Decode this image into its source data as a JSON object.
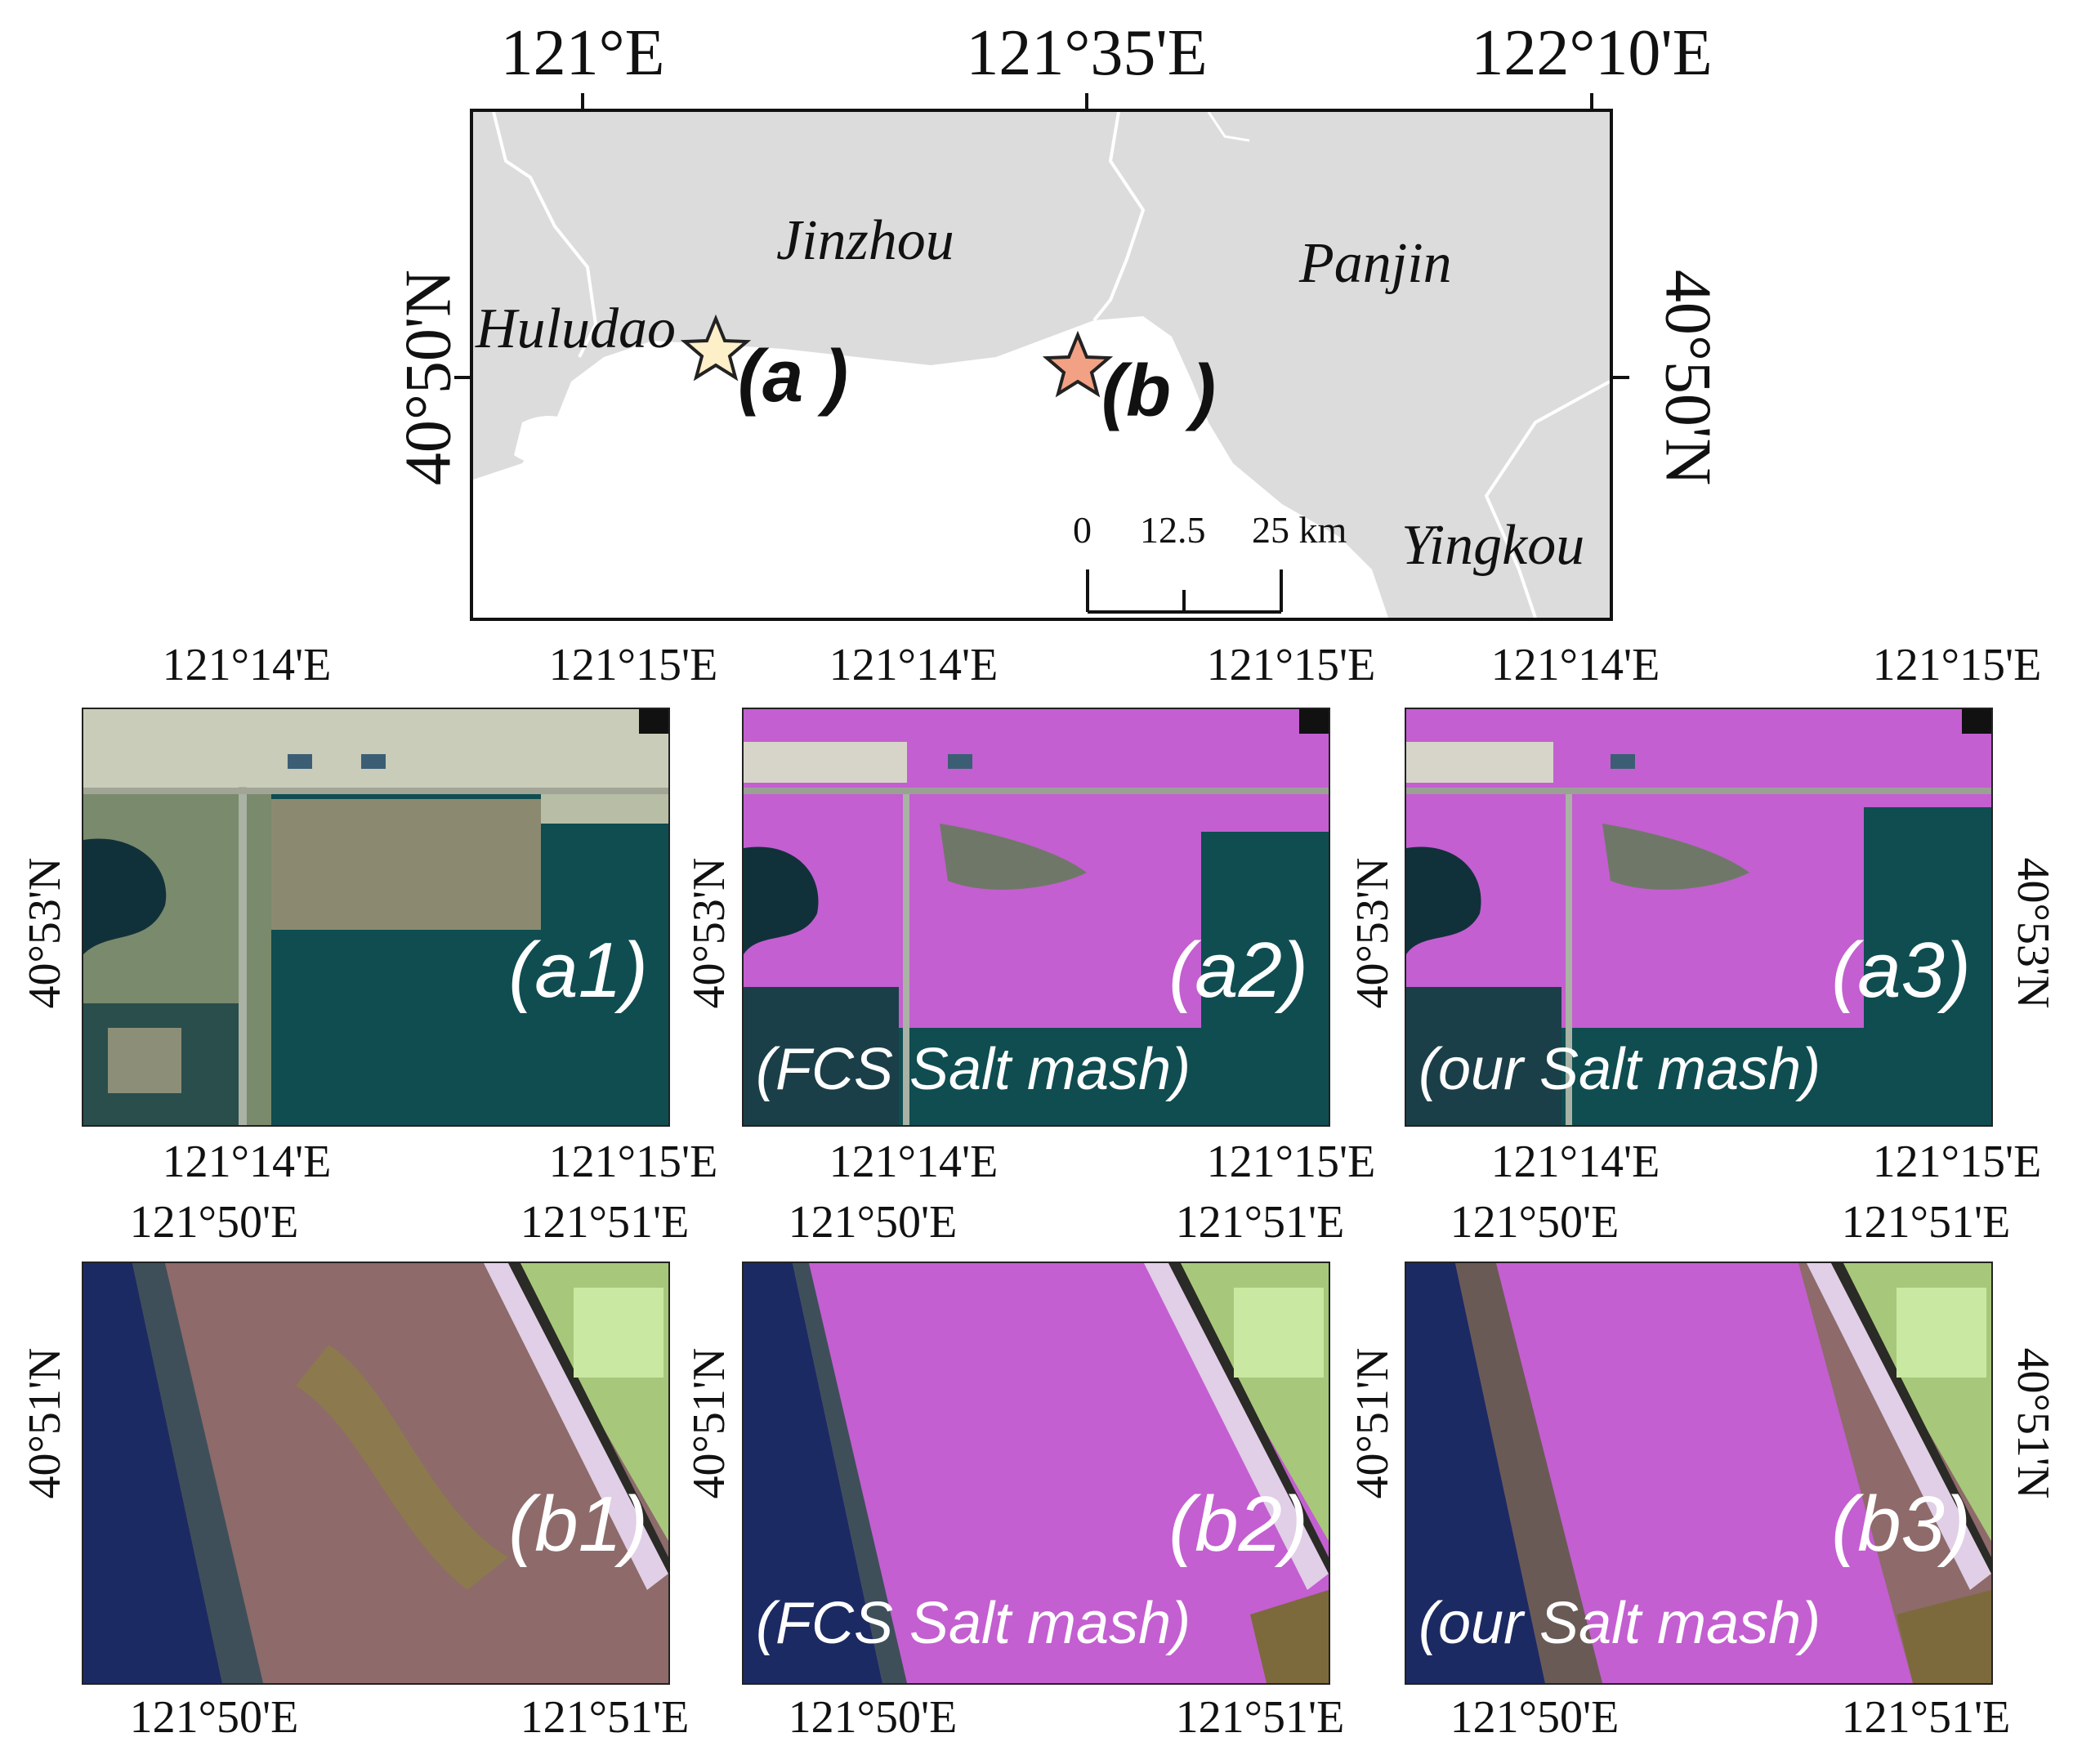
{
  "overview": {
    "lon_ticks": [
      "121°E",
      "121°35'E",
      "122°10'E"
    ],
    "lat_tick": "40°50'N",
    "places": [
      "Jinzhou",
      "Panjin",
      "Huludao",
      "Yingkou"
    ],
    "markers": [
      {
        "id": "a",
        "label": "(a )",
        "color": "#fdefc8"
      },
      {
        "id": "b",
        "label": "(b )",
        "color": "#f2a184"
      }
    ],
    "scale_bar": {
      "labels": [
        "0",
        "12.5",
        "25 km"
      ]
    },
    "colors": {
      "land": "#dcdcdc",
      "sea": "#ffffff",
      "border": "#ffffff"
    }
  },
  "row_a": {
    "top_lon": [
      "121°14'E",
      "121°15'E"
    ],
    "bottom_lon": [
      "121°14'E",
      "121°15'E"
    ],
    "lat": "40°53'N",
    "panels": [
      {
        "tag": "(a1)",
        "note": ""
      },
      {
        "tag": "(a2)",
        "note": "(FCS Salt mash)"
      },
      {
        "tag": "(a3)",
        "note": "(our Salt mash)"
      }
    ]
  },
  "row_b": {
    "top_lon": [
      "121°50'E",
      "121°51'E"
    ],
    "bottom_lon": [
      "121°50'E",
      "121°51'E"
    ],
    "lat": "40°51'N",
    "panels": [
      {
        "tag": "(b1)",
        "note": ""
      },
      {
        "tag": "(b2)",
        "note": "(FCS Salt mash)"
      },
      {
        "tag": "(b3)",
        "note": "(our Salt mash)"
      }
    ]
  },
  "colors": {
    "salt_marsh": "#c35fd0",
    "water": "#0d4a4f",
    "deep_water": "#1c2a63"
  }
}
